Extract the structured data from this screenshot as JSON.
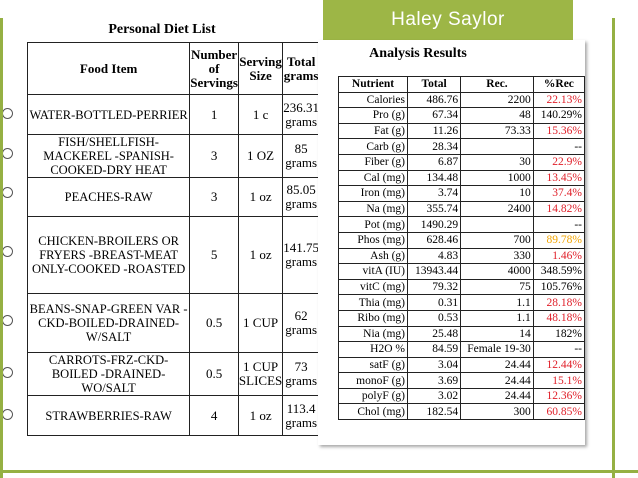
{
  "author": "Haley Saylor",
  "colors": {
    "accent_green": "#9db646",
    "warn_red": "#e0202a",
    "warn_orange": "#f2a400"
  },
  "diet": {
    "title": "Personal Diet List",
    "headers": {
      "food": "Food Item",
      "servings": "Number of Servings",
      "size": "Serving Size",
      "grams": "Total grams"
    },
    "rows": [
      {
        "food": "WATER-BOTTLED-PERRIER",
        "servings": "1",
        "size": "1 c",
        "grams": "236.31 grams"
      },
      {
        "food": "FISH/SHELLFISH-MACKEREL -SPANISH-COOKED-DRY HEAT",
        "servings": "3",
        "size": "1 OZ",
        "grams": "85 grams"
      },
      {
        "food": "PEACHES-RAW",
        "servings": "3",
        "size": "1 oz",
        "grams": "85.05 grams"
      },
      {
        "food": "CHICKEN-BROILERS OR FRYERS -BREAST-MEAT ONLY-COOKED -ROASTED",
        "servings": "5",
        "size": "1 oz",
        "grams": "141.75 grams"
      },
      {
        "food": "BEANS-SNAP-GREEN VAR -CKD-BOILED-DRAINED- W/SALT",
        "servings": "0.5",
        "size": "1 CUP",
        "grams": "62 grams"
      },
      {
        "food": "CARROTS-FRZ-CKD-BOILED -DRAINED-WO/SALT",
        "servings": "0.5",
        "size": "1 CUP SLICES",
        "grams": "73 grams"
      },
      {
        "food": "STRAWBERRIES-RAW",
        "servings": "4",
        "size": "1 oz",
        "grams": "113.4 grams"
      }
    ]
  },
  "analysis": {
    "title": "Analysis Results",
    "headers": {
      "nutrient": "Nutrient",
      "total": "Total",
      "rec": "Rec.",
      "pct": "%Rec"
    },
    "rows": [
      {
        "n": "Calories",
        "t": "486.76",
        "r": "2200",
        "p": "22.13%",
        "c": "red"
      },
      {
        "n": "Pro (g)",
        "t": "67.34",
        "r": "48",
        "p": "140.29%",
        "c": ""
      },
      {
        "n": "Fat (g)",
        "t": "11.26",
        "r": "73.33",
        "p": "15.36%",
        "c": "red"
      },
      {
        "n": "Carb (g)",
        "t": "28.34",
        "r": "",
        "p": "--",
        "c": ""
      },
      {
        "n": "Fiber (g)",
        "t": "6.87",
        "r": "30",
        "p": "22.9%",
        "c": "red"
      },
      {
        "n": "Cal (mg)",
        "t": "134.48",
        "r": "1000",
        "p": "13.45%",
        "c": "red"
      },
      {
        "n": "Iron (mg)",
        "t": "3.74",
        "r": "10",
        "p": "37.4%",
        "c": "red"
      },
      {
        "n": "Na (mg)",
        "t": "355.74",
        "r": "2400",
        "p": "14.82%",
        "c": "red"
      },
      {
        "n": "Pot (mg)",
        "t": "1490.29",
        "r": "",
        "p": "--",
        "c": ""
      },
      {
        "n": "Phos (mg)",
        "t": "628.46",
        "r": "700",
        "p": "89.78%",
        "c": "orange"
      },
      {
        "n": "Ash (g)",
        "t": "4.83",
        "r": "330",
        "p": "1.46%",
        "c": "red"
      },
      {
        "n": "vitA (IU)",
        "t": "13943.44",
        "r": "4000",
        "p": "348.59%",
        "c": ""
      },
      {
        "n": "vitC (mg)",
        "t": "79.32",
        "r": "75",
        "p": "105.76%",
        "c": ""
      },
      {
        "n": "Thia (mg)",
        "t": "0.31",
        "r": "1.1",
        "p": "28.18%",
        "c": "red"
      },
      {
        "n": "Ribo (mg)",
        "t": "0.53",
        "r": "1.1",
        "p": "48.18%",
        "c": "red"
      },
      {
        "n": "Nia (mg)",
        "t": "25.48",
        "r": "14",
        "p": "182%",
        "c": ""
      },
      {
        "n": "H2O %",
        "t": "84.59",
        "r": "Female 19-30",
        "p": "--",
        "c": ""
      },
      {
        "n": "satF (g)",
        "t": "3.04",
        "r": "24.44",
        "p": "12.44%",
        "c": "red"
      },
      {
        "n": "monoF (g)",
        "t": "3.69",
        "r": "24.44",
        "p": "15.1%",
        "c": "red"
      },
      {
        "n": "polyF (g)",
        "t": "3.02",
        "r": "24.44",
        "p": "12.36%",
        "c": "red"
      },
      {
        "n": "Chol (mg)",
        "t": "182.54",
        "r": "300",
        "p": "60.85%",
        "c": "red"
      }
    ]
  }
}
